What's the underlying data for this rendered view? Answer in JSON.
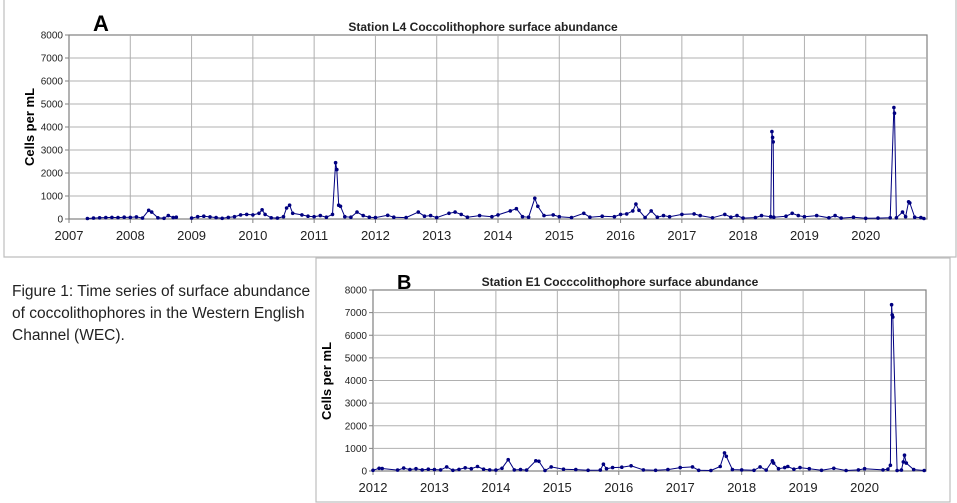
{
  "caption": "Figure 1: Time series of surface abundance of coccolithophores in the Western English Channel (WEC).",
  "colors": {
    "series": "#000080",
    "grid": "#b0b0b0",
    "frame": "#808080"
  },
  "chart_data": [
    {
      "type": "line",
      "panel_label": "A",
      "title": "Station L4 Coccolithophore surface abundance",
      "xlabel": "",
      "ylabel": "Cells per mL",
      "xlim": [
        2007,
        2021
      ],
      "ylim": [
        0,
        8000
      ],
      "grid": true,
      "xticks": [
        "2007",
        "2008",
        "2009",
        "2010",
        "2011",
        "2012",
        "2013",
        "2014",
        "2015",
        "2016",
        "2017",
        "2018",
        "2019",
        "2020"
      ],
      "yticks": [
        "0",
        "1000",
        "2000",
        "3000",
        "4000",
        "5000",
        "6000",
        "7000",
        "8000"
      ],
      "segments": [
        [
          [
            2007.3,
            20
          ],
          [
            2007.4,
            40
          ],
          [
            2007.5,
            50
          ],
          [
            2007.6,
            60
          ],
          [
            2007.7,
            70
          ],
          [
            2007.8,
            60
          ],
          [
            2007.9,
            80
          ],
          [
            2008.0,
            70
          ],
          [
            2008.1,
            90
          ],
          [
            2008.2,
            40
          ],
          [
            2008.3,
            380
          ],
          [
            2008.35,
            300
          ],
          [
            2008.45,
            50
          ],
          [
            2008.55,
            30
          ],
          [
            2008.62,
            150
          ],
          [
            2008.7,
            60
          ],
          [
            2008.75,
            80
          ]
        ],
        [
          [
            2009.0,
            40
          ],
          [
            2009.1,
            100
          ],
          [
            2009.2,
            120
          ],
          [
            2009.3,
            90
          ],
          [
            2009.4,
            60
          ],
          [
            2009.5,
            30
          ],
          [
            2009.6,
            70
          ],
          [
            2009.7,
            100
          ],
          [
            2009.8,
            180
          ],
          [
            2009.9,
            200
          ],
          [
            2010.0,
            180
          ],
          [
            2010.1,
            250
          ],
          [
            2010.15,
            400
          ],
          [
            2010.2,
            200
          ],
          [
            2010.3,
            50
          ],
          [
            2010.4,
            40
          ],
          [
            2010.5,
            100
          ],
          [
            2010.55,
            480
          ],
          [
            2010.6,
            600
          ],
          [
            2010.65,
            250
          ],
          [
            2010.8,
            180
          ],
          [
            2010.9,
            120
          ],
          [
            2011.0,
            100
          ],
          [
            2011.1,
            150
          ],
          [
            2011.2,
            80
          ],
          [
            2011.3,
            200
          ],
          [
            2011.35,
            2450
          ],
          [
            2011.37,
            2150
          ],
          [
            2011.4,
            600
          ],
          [
            2011.43,
            550
          ],
          [
            2011.5,
            100
          ],
          [
            2011.6,
            80
          ],
          [
            2011.7,
            300
          ],
          [
            2011.8,
            150
          ],
          [
            2011.9,
            80
          ],
          [
            2012.0,
            60
          ],
          [
            2012.2,
            160
          ],
          [
            2012.3,
            80
          ],
          [
            2012.5,
            60
          ],
          [
            2012.7,
            300
          ],
          [
            2012.8,
            120
          ],
          [
            2012.9,
            150
          ],
          [
            2013.0,
            60
          ],
          [
            2013.2,
            250
          ],
          [
            2013.3,
            300
          ],
          [
            2013.4,
            200
          ],
          [
            2013.5,
            80
          ],
          [
            2013.7,
            150
          ],
          [
            2013.9,
            100
          ],
          [
            2014.0,
            180
          ],
          [
            2014.2,
            350
          ],
          [
            2014.3,
            450
          ],
          [
            2014.4,
            100
          ],
          [
            2014.5,
            80
          ],
          [
            2014.6,
            900
          ],
          [
            2014.65,
            550
          ],
          [
            2014.75,
            150
          ],
          [
            2014.9,
            180
          ],
          [
            2015.0,
            100
          ],
          [
            2015.2,
            60
          ],
          [
            2015.4,
            250
          ],
          [
            2015.5,
            80
          ],
          [
            2015.7,
            120
          ],
          [
            2015.9,
            100
          ],
          [
            2016.0,
            200
          ],
          [
            2016.1,
            220
          ],
          [
            2016.2,
            350
          ],
          [
            2016.25,
            650
          ],
          [
            2016.3,
            380
          ],
          [
            2016.4,
            60
          ],
          [
            2016.5,
            350
          ],
          [
            2016.6,
            80
          ],
          [
            2016.7,
            150
          ],
          [
            2016.8,
            100
          ],
          [
            2017.0,
            200
          ],
          [
            2017.2,
            220
          ],
          [
            2017.3,
            150
          ],
          [
            2017.5,
            50
          ],
          [
            2017.7,
            200
          ],
          [
            2017.8,
            80
          ],
          [
            2017.9,
            150
          ],
          [
            2018.0,
            40
          ],
          [
            2018.2,
            60
          ],
          [
            2018.3,
            150
          ],
          [
            2018.45,
            100
          ],
          [
            2018.47,
            3800
          ],
          [
            2018.48,
            3550
          ],
          [
            2018.49,
            3350
          ],
          [
            2018.5,
            80
          ],
          [
            2018.7,
            120
          ],
          [
            2018.8,
            250
          ],
          [
            2018.9,
            150
          ],
          [
            2019.0,
            100
          ],
          [
            2019.2,
            150
          ],
          [
            2019.4,
            50
          ],
          [
            2019.5,
            150
          ],
          [
            2019.6,
            40
          ],
          [
            2019.8,
            80
          ],
          [
            2020.0,
            30
          ],
          [
            2020.2,
            40
          ],
          [
            2020.4,
            50
          ],
          [
            2020.46,
            4850
          ],
          [
            2020.47,
            4600
          ],
          [
            2020.5,
            50
          ],
          [
            2020.6,
            300
          ],
          [
            2020.65,
            100
          ],
          [
            2020.7,
            750
          ],
          [
            2020.72,
            700
          ],
          [
            2020.8,
            80
          ],
          [
            2020.9,
            60
          ],
          [
            2020.95,
            20
          ]
        ]
      ]
    },
    {
      "type": "line",
      "panel_label": "B",
      "title": "Station E1 Cocccolithophore surface abundance",
      "xlabel": "",
      "ylabel": "Cells per mL",
      "xlim": [
        2012,
        2021
      ],
      "ylim": [
        0,
        8000
      ],
      "grid": true,
      "xticks": [
        "2012",
        "2013",
        "2014",
        "2015",
        "2016",
        "2017",
        "2018",
        "2019",
        "2020"
      ],
      "yticks": [
        "0",
        "1000",
        "2000",
        "3000",
        "4000",
        "5000",
        "6000",
        "7000",
        "8000"
      ],
      "segments": [
        [
          [
            2012.0,
            30
          ],
          [
            2012.1,
            120
          ],
          [
            2012.15,
            110
          ],
          [
            2012.4,
            40
          ],
          [
            2012.5,
            130
          ],
          [
            2012.6,
            60
          ],
          [
            2012.7,
            100
          ],
          [
            2012.8,
            50
          ],
          [
            2012.9,
            80
          ],
          [
            2013.0,
            60
          ],
          [
            2013.1,
            50
          ],
          [
            2013.2,
            180
          ],
          [
            2013.3,
            30
          ],
          [
            2013.4,
            70
          ],
          [
            2013.5,
            140
          ],
          [
            2013.6,
            100
          ],
          [
            2013.7,
            200
          ],
          [
            2013.8,
            80
          ],
          [
            2013.9,
            50
          ],
          [
            2014.0,
            40
          ],
          [
            2014.1,
            120
          ],
          [
            2014.2,
            500
          ],
          [
            2014.3,
            50
          ],
          [
            2014.4,
            60
          ],
          [
            2014.5,
            40
          ],
          [
            2014.65,
            450
          ],
          [
            2014.7,
            430
          ],
          [
            2014.8,
            20
          ],
          [
            2014.9,
            180
          ],
          [
            2015.1,
            80
          ],
          [
            2015.3,
            60
          ],
          [
            2015.5,
            30
          ],
          [
            2015.7,
            40
          ],
          [
            2015.75,
            300
          ],
          [
            2015.8,
            100
          ],
          [
            2015.9,
            150
          ],
          [
            2016.05,
            170
          ],
          [
            2016.2,
            230
          ],
          [
            2016.4,
            50
          ],
          [
            2016.6,
            30
          ],
          [
            2016.8,
            60
          ],
          [
            2017.0,
            150
          ],
          [
            2017.2,
            180
          ],
          [
            2017.3,
            30
          ],
          [
            2017.5,
            20
          ],
          [
            2017.65,
            200
          ],
          [
            2017.72,
            800
          ],
          [
            2017.75,
            650
          ],
          [
            2017.85,
            60
          ],
          [
            2018.0,
            50
          ],
          [
            2018.2,
            30
          ],
          [
            2018.3,
            180
          ],
          [
            2018.4,
            40
          ],
          [
            2018.5,
            450
          ],
          [
            2018.52,
            350
          ],
          [
            2018.6,
            100
          ],
          [
            2018.7,
            150
          ],
          [
            2018.75,
            200
          ],
          [
            2018.85,
            80
          ],
          [
            2018.95,
            150
          ],
          [
            2019.1,
            100
          ],
          [
            2019.3,
            30
          ],
          [
            2019.5,
            120
          ],
          [
            2019.7,
            20
          ],
          [
            2019.9,
            50
          ],
          [
            2020.0,
            100
          ],
          [
            2020.3,
            50
          ],
          [
            2020.38,
            80
          ],
          [
            2020.42,
            250
          ],
          [
            2020.44,
            7350
          ],
          [
            2020.45,
            6900
          ],
          [
            2020.46,
            6800
          ],
          [
            2020.53,
            20
          ],
          [
            2020.6,
            40
          ],
          [
            2020.63,
            400
          ],
          [
            2020.65,
            700
          ],
          [
            2020.68,
            350
          ],
          [
            2020.8,
            60
          ],
          [
            2020.97,
            20
          ]
        ]
      ]
    }
  ]
}
